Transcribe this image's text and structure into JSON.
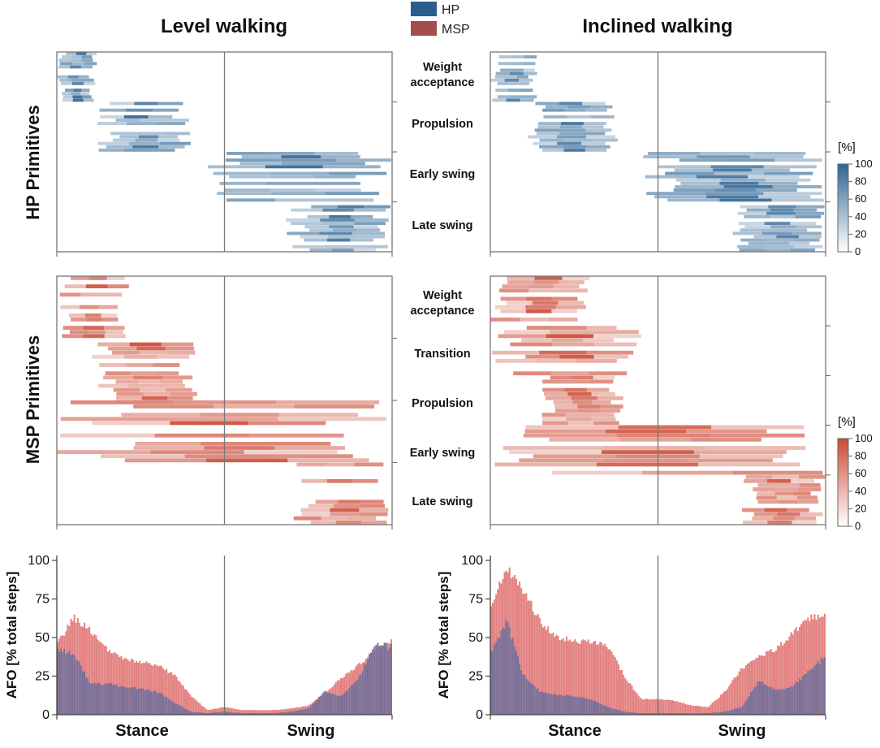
{
  "legend": [
    {
      "name": "HP",
      "color": "#2b5e8f"
    },
    {
      "name": "MSP",
      "color": "#a34d4d"
    }
  ],
  "column_titles": [
    "Level walking",
    "Inclined walking"
  ],
  "row_labels": {
    "hp": "HP Primitives",
    "msp": "MSP Primitives"
  },
  "colors": {
    "hp": "#2e6594",
    "msp": "#cc4a35",
    "afo_msp": "#e38080",
    "afo_hp": "#6e6e9a",
    "frame": "#777777"
  },
  "colorbar": {
    "unit": "[%]",
    "ticks": [
      "100",
      "80",
      "60",
      "40",
      "20",
      "0"
    ]
  },
  "phases": {
    "stance": "Stance",
    "swing": "Swing"
  },
  "chart_data": [
    {
      "type": "heatmap",
      "title": "Level walking",
      "ylabel": "HP Primitives",
      "series": "HP",
      "x_domain": [
        0,
        100
      ],
      "stance_swing_boundary": 50,
      "groups": [
        "Weight acceptance",
        "Propulsion",
        "Early swing",
        "Late swing"
      ],
      "activation_windows": [
        {
          "group": "Weight acceptance",
          "range": [
            0,
            12
          ]
        },
        {
          "group": "Propulsion",
          "range": [
            12,
            40
          ]
        },
        {
          "group": "Early swing",
          "range": [
            45,
            100
          ]
        },
        {
          "group": "Late swing",
          "range": [
            68,
            100
          ]
        }
      ],
      "zlim": [
        0,
        100
      ]
    },
    {
      "type": "heatmap",
      "title": "Inclined walking",
      "ylabel": "HP Primitives",
      "series": "HP",
      "x_domain": [
        0,
        100
      ],
      "stance_swing_boundary": 50,
      "groups": [
        "Weight acceptance",
        "Propulsion",
        "Early swing",
        "Late swing"
      ],
      "activation_windows": [
        {
          "group": "Weight acceptance",
          "range": [
            0,
            14
          ]
        },
        {
          "group": "Propulsion",
          "range": [
            10,
            38
          ]
        },
        {
          "group": "Early swing",
          "range": [
            45,
            100
          ]
        },
        {
          "group": "Late swing",
          "range": [
            72,
            100
          ]
        }
      ],
      "zlim": [
        0,
        100
      ]
    },
    {
      "type": "heatmap",
      "title": "Level walking",
      "ylabel": "MSP Primitives",
      "series": "MSP",
      "x_domain": [
        0,
        100
      ],
      "stance_swing_boundary": 50,
      "groups": [
        "Weight acceptance",
        "Propulsion",
        "Early swing",
        "Late swing"
      ],
      "activation_windows": [
        {
          "group": "Weight acceptance",
          "range": [
            0,
            22
          ]
        },
        {
          "group": "Propulsion",
          "range": [
            10,
            42
          ]
        },
        {
          "group": "Early swing",
          "range": [
            0,
            100
          ]
        },
        {
          "group": "Late swing",
          "range": [
            70,
            100
          ]
        }
      ],
      "zlim": [
        0,
        100
      ]
    },
    {
      "type": "heatmap",
      "title": "Inclined walking",
      "ylabel": "MSP Primitives",
      "series": "MSP",
      "x_domain": [
        0,
        100
      ],
      "stance_swing_boundary": 50,
      "groups": [
        "Weight acceptance",
        "Transition",
        "Propulsion",
        "Early swing",
        "Late swing"
      ],
      "activation_windows": [
        {
          "group": "Weight acceptance",
          "range": [
            0,
            30
          ]
        },
        {
          "group": "Transition",
          "range": [
            0,
            45
          ]
        },
        {
          "group": "Propulsion",
          "range": [
            15,
            40
          ]
        },
        {
          "group": "Early swing",
          "range": [
            0,
            100
          ]
        },
        {
          "group": "Late swing",
          "range": [
            75,
            100
          ]
        }
      ],
      "zlim": [
        0,
        100
      ]
    },
    {
      "type": "bar",
      "title": "Level walking",
      "ylabel": "AFO [% total steps]",
      "xlabel": "Stance / Swing",
      "ylim": [
        0,
        100
      ],
      "yticks": [
        0,
        25,
        50,
        75,
        100
      ],
      "x": [
        0,
        5,
        10,
        15,
        20,
        25,
        30,
        35,
        40,
        45,
        50,
        55,
        60,
        65,
        70,
        75,
        80,
        85,
        90,
        95,
        100
      ],
      "series": [
        {
          "name": "MSP",
          "values": [
            45,
            63,
            55,
            42,
            36,
            34,
            32,
            26,
            12,
            3,
            5,
            3,
            3,
            3,
            4,
            6,
            14,
            24,
            32,
            42,
            48
          ]
        },
        {
          "name": "HP",
          "values": [
            42,
            40,
            20,
            20,
            18,
            17,
            15,
            8,
            2,
            1,
            2,
            1,
            1,
            1,
            2,
            4,
            15,
            12,
            24,
            45,
            44
          ]
        }
      ]
    },
    {
      "type": "bar",
      "title": "Inclined walking",
      "ylabel": "AFO [% total steps]",
      "xlabel": "Stance / Swing",
      "ylim": [
        0,
        100
      ],
      "yticks": [
        0,
        25,
        50,
        75,
        100
      ],
      "x": [
        0,
        5,
        10,
        15,
        20,
        25,
        30,
        35,
        40,
        45,
        50,
        55,
        60,
        65,
        70,
        75,
        80,
        85,
        90,
        95,
        100
      ],
      "series": [
        {
          "name": "MSP",
          "values": [
            70,
            95,
            80,
            60,
            50,
            48,
            47,
            45,
            25,
            10,
            10,
            9,
            6,
            5,
            15,
            30,
            38,
            42,
            52,
            62,
            66
          ]
        },
        {
          "name": "HP",
          "values": [
            40,
            60,
            25,
            15,
            13,
            12,
            10,
            5,
            2,
            1,
            1,
            1,
            1,
            1,
            2,
            5,
            22,
            16,
            18,
            28,
            38
          ]
        }
      ]
    }
  ]
}
